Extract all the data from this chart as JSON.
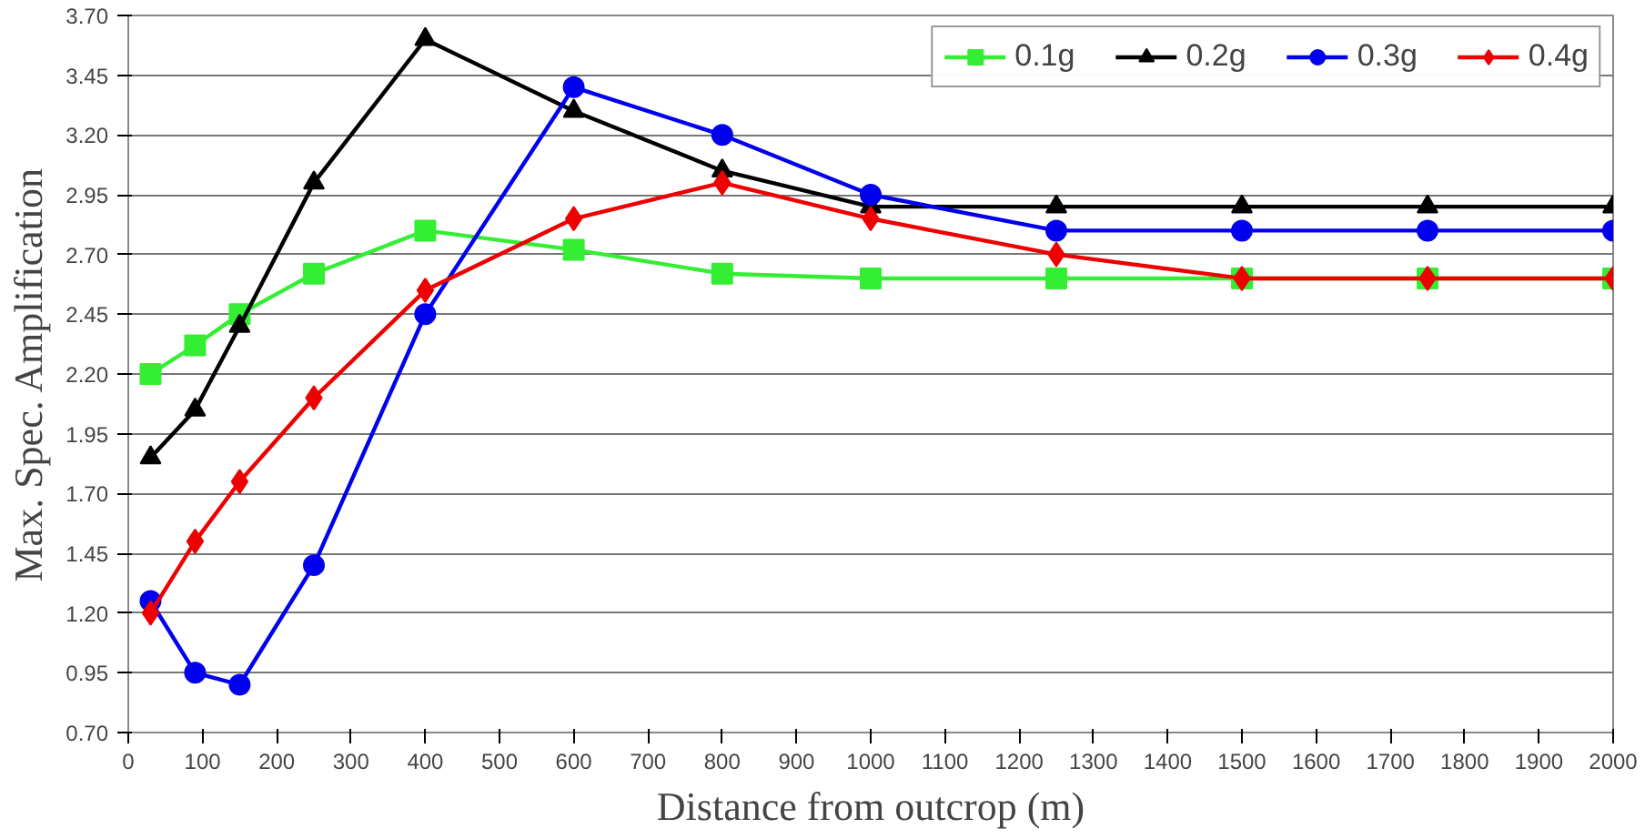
{
  "chart_data": {
    "type": "line",
    "xlabel": "Distance from outcrop (m)",
    "ylabel": "Max. Spec. Amplification",
    "x": [
      30,
      90,
      150,
      250,
      400,
      600,
      800,
      1000,
      1250,
      1500,
      1750,
      2000
    ],
    "series": [
      {
        "name": "0.1g",
        "color": "#33ee33",
        "marker": "square",
        "values": [
          2.2,
          2.32,
          2.45,
          2.62,
          2.8,
          2.72,
          2.62,
          2.6,
          2.6,
          2.6,
          2.6,
          2.6
        ]
      },
      {
        "name": "0.2g",
        "color": "#000000",
        "marker": "triangle",
        "values": [
          1.85,
          2.05,
          2.4,
          3.0,
          3.6,
          3.3,
          3.05,
          2.9,
          2.9,
          2.9,
          2.9,
          2.9
        ]
      },
      {
        "name": "0.3g",
        "color": "#0000ee",
        "marker": "circle",
        "values": [
          1.25,
          0.95,
          0.9,
          1.4,
          2.45,
          3.4,
          3.2,
          2.95,
          2.8,
          2.8,
          2.8,
          2.8
        ]
      },
      {
        "name": "0.4g",
        "color": "#ee0000",
        "marker": "diamond",
        "values": [
          1.2,
          1.5,
          1.75,
          2.1,
          2.55,
          2.85,
          3.0,
          2.85,
          2.7,
          2.6,
          2.6,
          2.6
        ]
      }
    ],
    "xlim": [
      0,
      2000
    ],
    "ylim": [
      0.7,
      3.7
    ],
    "xticks": [
      0,
      100,
      200,
      300,
      400,
      500,
      600,
      700,
      800,
      900,
      1000,
      1100,
      1200,
      1300,
      1400,
      1500,
      1600,
      1700,
      1800,
      1900,
      2000
    ],
    "yticks": [
      {
        "value": 0.7,
        "label": "0.70"
      },
      {
        "value": 0.95,
        "label": "0.95"
      },
      {
        "value": 1.2,
        "label": "1.20"
      },
      {
        "value": 1.45,
        "label": "1.45"
      },
      {
        "value": 1.7,
        "label": "1.70"
      },
      {
        "value": 1.95,
        "label": "1.95"
      },
      {
        "value": 2.2,
        "label": "2.20"
      },
      {
        "value": 2.45,
        "label": "2.45"
      },
      {
        "value": 2.7,
        "label": "2.70"
      },
      {
        "value": 2.95,
        "label": "2.95"
      },
      {
        "value": 3.2,
        "label": "3.20"
      },
      {
        "value": 3.45,
        "label": "3.45"
      },
      {
        "value": 3.7,
        "label": "3.70"
      }
    ],
    "grid": "y",
    "legend": "top right",
    "line_style": "solid"
  }
}
